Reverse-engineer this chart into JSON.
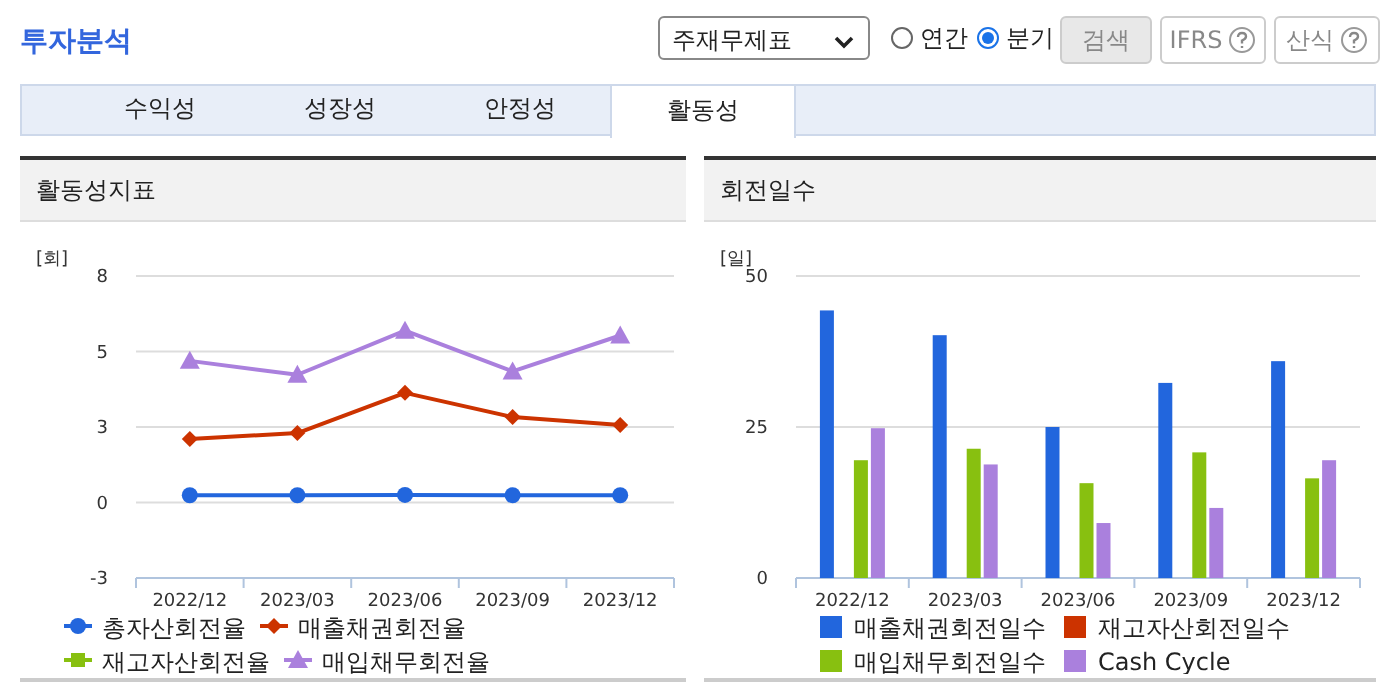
{
  "chart_data": [
    {
      "type": "other",
      "title": "투자분석",
      "annotations": [
        "주재무제표",
        "연간",
        "분기",
        "검색",
        "IFRS",
        "산식",
        "수익성",
        "성장성",
        "안정성",
        "활동성"
      ]
    },
    {
      "type": "line",
      "title": "활동성지표",
      "ylabel": "[회]",
      "categories": [
        "2022/12",
        "2023/03",
        "2023/06",
        "2023/09",
        "2023/12"
      ],
      "ylim": [
        -2.5,
        7.5
      ],
      "yticks": [
        {
          "value": -2.5,
          "label": "-3"
        },
        {
          "value": 0,
          "label": "0"
        },
        {
          "value": 2.5,
          "label": "3"
        },
        {
          "value": 5,
          "label": "5"
        },
        {
          "value": 7.5,
          "label": "8"
        }
      ],
      "grid": "y",
      "legend": "bottom",
      "series": [
        {
          "name": "총자산회전율",
          "color": "#2266dd",
          "marker": "circle",
          "values": [
            0.24,
            0.24,
            0.25,
            0.24,
            0.24
          ]
        },
        {
          "name": "매출채권회전율",
          "color": "#cc3300",
          "marker": "diamond",
          "values": [
            2.1,
            2.3,
            3.63,
            2.83,
            2.57
          ]
        },
        {
          "name": "재고자산회전율",
          "color": "#88c010",
          "marker": "square",
          "values": [
            null,
            null,
            null,
            null,
            null
          ]
        },
        {
          "name": "매입채무회전율",
          "color": "#aa80dd",
          "marker": "triangle",
          "values": [
            4.69,
            4.23,
            5.69,
            4.34,
            5.53
          ]
        }
      ]
    },
    {
      "type": "bar",
      "title": "회전일수",
      "ylabel": "[일]",
      "categories": [
        "2022/12",
        "2023/03",
        "2023/06",
        "2023/09",
        "2023/12"
      ],
      "ylim": [
        0,
        50
      ],
      "yticks": [
        0,
        25,
        50
      ],
      "grid": "y",
      "legend": "bottom",
      "series": [
        {
          "name": "매출채권회전일수",
          "color": "#2266dd",
          "values": [
            44.3,
            40.2,
            25.0,
            32.3,
            35.9
          ]
        },
        {
          "name": "재고자산회전일수",
          "color": "#cc3300",
          "values": [
            null,
            null,
            null,
            null,
            null
          ]
        },
        {
          "name": "매입채무회전일수",
          "color": "#88c010",
          "values": [
            19.5,
            21.4,
            15.7,
            20.8,
            16.5
          ]
        },
        {
          "name": "Cash Cycle",
          "color": "#aa80dd",
          "values": [
            24.8,
            18.8,
            9.1,
            11.6,
            19.5
          ]
        }
      ]
    }
  ]
}
